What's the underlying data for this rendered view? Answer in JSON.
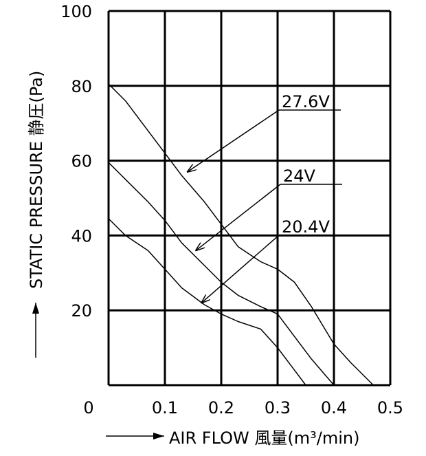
{
  "chart_data": {
    "type": "line",
    "xlabel": "AIR FLOW 風量(m³/min)",
    "ylabel": "STATIC PRESSURE 静圧(Pa)",
    "origin_label": "0",
    "xlim": [
      0,
      0.5
    ],
    "ylim": [
      0,
      100
    ],
    "x_ticks": [
      "0.1",
      "0.2",
      "0.3",
      "0.4",
      "0.5"
    ],
    "y_ticks": [
      "20",
      "40",
      "60",
      "80",
      "100"
    ],
    "grid": true,
    "series": [
      {
        "name": "27.6V",
        "x": [
          0,
          0.03,
          0.07,
          0.1,
          0.13,
          0.17,
          0.2,
          0.23,
          0.27,
          0.3,
          0.33,
          0.36,
          0.4,
          0.43,
          0.47
        ],
        "y": [
          80.5,
          76,
          68,
          62,
          56,
          49,
          43,
          37,
          33,
          31,
          27.5,
          21,
          11,
          6,
          0
        ]
      },
      {
        "name": "24V",
        "x": [
          0,
          0.03,
          0.07,
          0.1,
          0.13,
          0.17,
          0.2,
          0.23,
          0.27,
          0.3,
          0.33,
          0.36,
          0.4
        ],
        "y": [
          59.5,
          55,
          49,
          44,
          38,
          32,
          27.5,
          24,
          21,
          19,
          13,
          7,
          0
        ]
      },
      {
        "name": "20.4V",
        "x": [
          0,
          0.03,
          0.07,
          0.1,
          0.13,
          0.17,
          0.2,
          0.23,
          0.27,
          0.3,
          0.33,
          0.35
        ],
        "y": [
          44.5,
          40,
          36,
          31,
          26,
          21.5,
          19,
          17,
          15,
          10,
          4,
          0
        ]
      }
    ],
    "annotations": [
      {
        "text": "27.6V",
        "series": "27.6V",
        "arrow_to": [
          0.14,
          57
        ]
      },
      {
        "text": "24V",
        "series": "24V",
        "arrow_to": [
          0.155,
          36
        ]
      },
      {
        "text": "20.4V",
        "series": "20.4V",
        "arrow_to": [
          0.165,
          22
        ]
      }
    ]
  }
}
